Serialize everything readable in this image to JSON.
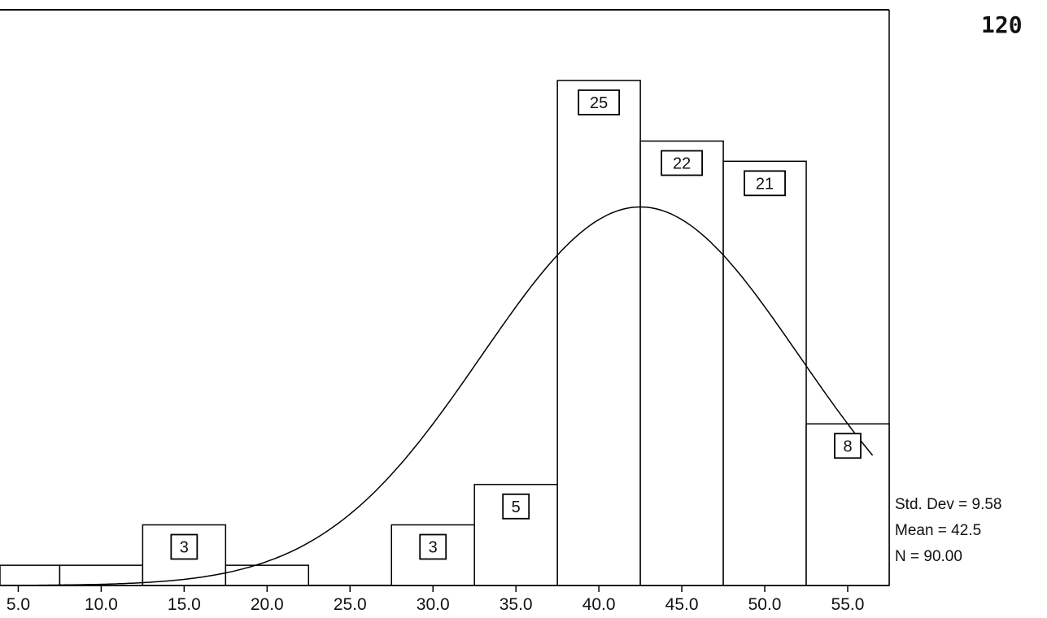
{
  "corner_number": "120",
  "stats": {
    "std_dev": "Std. Dev = 9.58",
    "mean": "Mean = 42.5",
    "n": "N = 90.00"
  },
  "chart_data": {
    "type": "bar",
    "subtype": "histogram",
    "bin_width": 5,
    "bins": [
      {
        "center": 5.0,
        "count": 1,
        "label": ""
      },
      {
        "center": 10.0,
        "count": 1,
        "label": ""
      },
      {
        "center": 15.0,
        "count": 3,
        "label": "3"
      },
      {
        "center": 20.0,
        "count": 1,
        "label": ""
      },
      {
        "center": 25.0,
        "count": 0,
        "label": ""
      },
      {
        "center": 30.0,
        "count": 3,
        "label": "3"
      },
      {
        "center": 35.0,
        "count": 5,
        "label": "5"
      },
      {
        "center": 40.0,
        "count": 25,
        "label": "25"
      },
      {
        "center": 45.0,
        "count": 22,
        "label": "22"
      },
      {
        "center": 50.0,
        "count": 21,
        "label": "21"
      },
      {
        "center": 55.0,
        "count": 8,
        "label": "8"
      }
    ],
    "xticks": [
      "5.0",
      "10.0",
      "15.0",
      "20.0",
      "25.0",
      "30.0",
      "35.0",
      "40.0",
      "45.0",
      "50.0",
      "55.0"
    ],
    "xlim": [
      3.9,
      57.5
    ],
    "ylim": [
      0,
      28.5
    ],
    "normal_curve": {
      "mean": 42.5,
      "std_dev": 9.58,
      "n": 90
    },
    "title": "",
    "xlabel": "",
    "ylabel": "",
    "colors": {
      "bar_fill": "#ffffff",
      "stroke": "#000000"
    }
  }
}
